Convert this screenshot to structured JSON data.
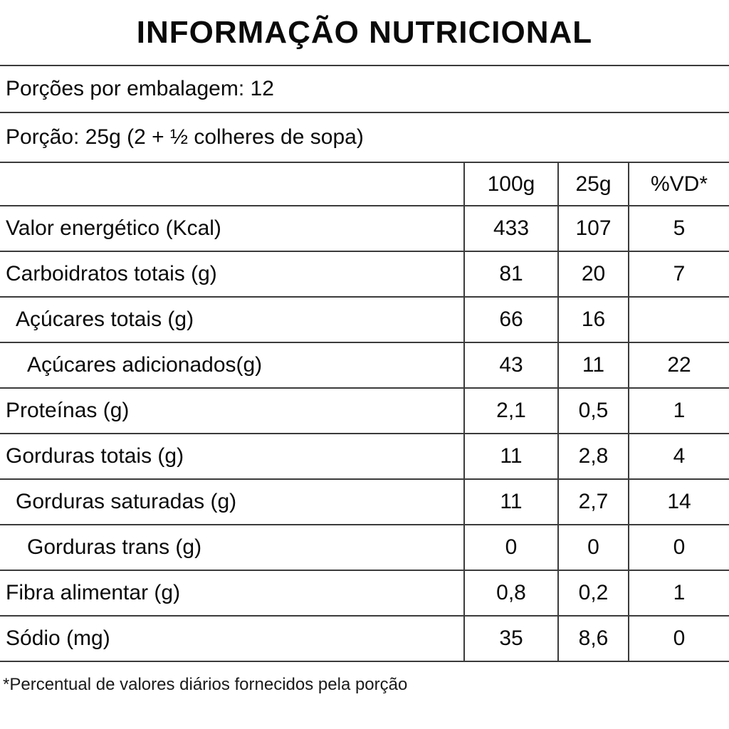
{
  "title": "INFORMAÇÃO NUTRICIONAL",
  "servings_line": "Porções por embalagem: 12",
  "portion_line": "Porção: 25g (2 + ½  colheres de sopa)",
  "table": {
    "columns": {
      "label": "",
      "per100g": "100g",
      "per25g": "25g",
      "vd": "%VD*"
    },
    "rows": [
      {
        "label": "Valor energético (Kcal)",
        "indent": 0,
        "per100g": "433",
        "per25g": "107",
        "vd": "5"
      },
      {
        "label": "Carboidratos totais (g)",
        "indent": 0,
        "per100g": "81",
        "per25g": "20",
        "vd": "7"
      },
      {
        "label": "Açúcares totais (g)",
        "indent": 1,
        "per100g": "66",
        "per25g": "16",
        "vd": ""
      },
      {
        "label": "Açúcares adicionados(g)",
        "indent": 2,
        "per100g": "43",
        "per25g": "11",
        "vd": "22"
      },
      {
        "label": "Proteínas (g)",
        "indent": 0,
        "per100g": "2,1",
        "per25g": "0,5",
        "vd": "1"
      },
      {
        "label": "Gorduras totais (g)",
        "indent": 0,
        "per100g": "11",
        "per25g": "2,8",
        "vd": "4"
      },
      {
        "label": "Gorduras saturadas (g)",
        "indent": 1,
        "per100g": "11",
        "per25g": "2,7",
        "vd": "14"
      },
      {
        "label": "Gorduras trans (g)",
        "indent": 2,
        "per100g": "0",
        "per25g": "0",
        "vd": "0"
      },
      {
        "label": "Fibra alimentar (g)",
        "indent": 0,
        "per100g": "0,8",
        "per25g": "0,2",
        "vd": "1"
      },
      {
        "label": "Sódio (mg)",
        "indent": 0,
        "per100g": "35",
        "per25g": "8,6",
        "vd": "0"
      }
    ]
  },
  "footnote": "*Percentual de valores diários fornecidos pela porção",
  "colors": {
    "line": "#3b3b3b",
    "text": "#0a0a0a",
    "background": "#ffffff"
  }
}
